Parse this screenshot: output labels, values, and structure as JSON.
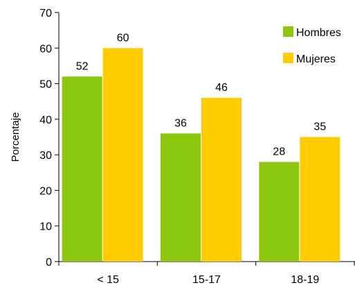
{
  "chart_data": {
    "type": "bar",
    "title": "",
    "xlabel": "",
    "ylabel": "Porcentaje",
    "ylim": [
      0,
      70
    ],
    "yticks": [
      0,
      10,
      20,
      30,
      40,
      50,
      60,
      70
    ],
    "categories": [
      "< 15",
      "15-17",
      "18-19"
    ],
    "series": [
      {
        "name": "Hombres",
        "values": [
          52,
          36,
          28
        ],
        "color": "#8CC710"
      },
      {
        "name": "Mujeres",
        "values": [
          60,
          46,
          35
        ],
        "color": "#FFCC00"
      }
    ],
    "legend": "top-right",
    "grid": false
  }
}
